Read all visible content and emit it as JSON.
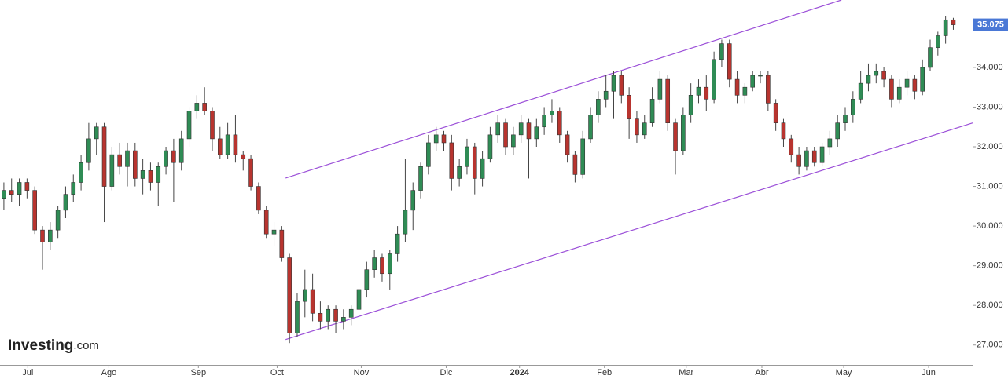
{
  "chart_data": {
    "type": "candlestick",
    "up_color": "#2f8c55",
    "down_color": "#b8342f",
    "line_color": "#9b4fd8",
    "price_label_color": "#4a78d6",
    "grid": false,
    "logo": "Investing",
    "logo_suffix": ".com",
    "xlim": [
      -0.5,
      125.5
    ],
    "ylim": [
      26.5,
      35.7
    ],
    "xticks": [
      {
        "value": 3.1,
        "label": "Jul"
      },
      {
        "value": 13.6,
        "label": "Ago"
      },
      {
        "value": 25.2,
        "label": "Sep"
      },
      {
        "value": 35.4,
        "label": "Oct"
      },
      {
        "value": 46.3,
        "label": "Nov"
      },
      {
        "value": 57.3,
        "label": "Dic"
      },
      {
        "value": 66.8,
        "label": "2024"
      },
      {
        "value": 77.8,
        "label": "Feb"
      },
      {
        "value": 88.4,
        "label": "Mar"
      },
      {
        "value": 98.2,
        "label": "Abr"
      },
      {
        "value": 108.8,
        "label": "May"
      },
      {
        "value": 119.8,
        "label": "Jun"
      }
    ],
    "yticks": [
      {
        "value": 27,
        "label": "27.000"
      },
      {
        "value": 28,
        "label": "28.000"
      },
      {
        "value": 29,
        "label": "29.000"
      },
      {
        "value": 30,
        "label": "30.000"
      },
      {
        "value": 31,
        "label": "31.000"
      },
      {
        "value": 32,
        "label": "32.000"
      },
      {
        "value": 33,
        "label": "33.000"
      },
      {
        "value": 34,
        "label": "34.000"
      }
    ],
    "channels": [
      {
        "x": [
          36.5,
          108.5
        ],
        "y": [
          31.21,
          35.7
        ]
      },
      {
        "x": [
          36.5,
          125.5
        ],
        "y": [
          27.14,
          32.6
        ]
      }
    ],
    "ohlc": [
      [
        30.7,
        31.1,
        30.4,
        30.9
      ],
      [
        30.9,
        31.2,
        30.6,
        30.8
      ],
      [
        30.8,
        31.2,
        30.5,
        31.1
      ],
      [
        31.1,
        31.2,
        30.7,
        30.9
      ],
      [
        30.9,
        31.0,
        29.8,
        29.9
      ],
      [
        29.9,
        30.0,
        28.9,
        29.6
      ],
      [
        29.6,
        30.1,
        29.4,
        29.9
      ],
      [
        29.9,
        30.5,
        29.7,
        30.4
      ],
      [
        30.4,
        31.0,
        30.2,
        30.8
      ],
      [
        30.8,
        31.3,
        30.6,
        31.1
      ],
      [
        31.1,
        31.8,
        30.9,
        31.6
      ],
      [
        31.6,
        32.6,
        31.4,
        32.2
      ],
      [
        32.2,
        32.6,
        31.8,
        32.5
      ],
      [
        32.5,
        32.6,
        30.1,
        31.0
      ],
      [
        31.0,
        32.0,
        30.9,
        31.8
      ],
      [
        31.8,
        32.1,
        31.3,
        31.5
      ],
      [
        31.5,
        32.1,
        31.0,
        31.9
      ],
      [
        31.9,
        32.1,
        31.0,
        31.2
      ],
      [
        31.2,
        31.7,
        30.8,
        31.4
      ],
      [
        31.4,
        31.6,
        30.9,
        31.1
      ],
      [
        31.1,
        31.6,
        30.5,
        31.5
      ],
      [
        31.5,
        32.0,
        31.3,
        31.9
      ],
      [
        31.9,
        32.2,
        30.6,
        31.6
      ],
      [
        31.6,
        32.4,
        31.4,
        32.2
      ],
      [
        32.2,
        33.0,
        32.0,
        32.9
      ],
      [
        32.9,
        33.3,
        32.7,
        33.1
      ],
      [
        33.1,
        33.5,
        32.8,
        32.9
      ],
      [
        32.9,
        33.0,
        31.9,
        32.2
      ],
      [
        32.2,
        32.5,
        31.7,
        31.8
      ],
      [
        31.8,
        32.6,
        31.7,
        32.3
      ],
      [
        32.3,
        32.8,
        31.6,
        31.8
      ],
      [
        31.8,
        31.9,
        31.4,
        31.7
      ],
      [
        31.7,
        31.8,
        30.9,
        31.0
      ],
      [
        31.0,
        31.1,
        30.3,
        30.4
      ],
      [
        30.4,
        30.5,
        29.7,
        29.8
      ],
      [
        29.8,
        30.1,
        29.5,
        29.9
      ],
      [
        29.9,
        30.0,
        29.1,
        29.2
      ],
      [
        29.2,
        29.3,
        27.05,
        27.3
      ],
      [
        27.3,
        28.3,
        27.2,
        28.1
      ],
      [
        28.1,
        28.9,
        27.7,
        28.4
      ],
      [
        28.4,
        28.8,
        27.6,
        27.8
      ],
      [
        27.8,
        28.1,
        27.4,
        27.6
      ],
      [
        27.6,
        28.0,
        27.4,
        27.9
      ],
      [
        27.9,
        28.0,
        27.3,
        27.6
      ],
      [
        27.6,
        27.9,
        27.4,
        27.7
      ],
      [
        27.7,
        28.0,
        27.5,
        27.9
      ],
      [
        27.9,
        28.5,
        27.8,
        28.4
      ],
      [
        28.4,
        29.1,
        28.2,
        28.9
      ],
      [
        28.9,
        29.4,
        28.7,
        29.2
      ],
      [
        29.2,
        29.3,
        28.6,
        28.8
      ],
      [
        28.8,
        29.4,
        28.4,
        29.3
      ],
      [
        29.3,
        30.0,
        29.1,
        29.8
      ],
      [
        29.8,
        31.7,
        29.6,
        30.4
      ],
      [
        30.4,
        31.1,
        29.9,
        30.9
      ],
      [
        30.9,
        31.6,
        30.7,
        31.5
      ],
      [
        31.5,
        32.3,
        31.3,
        32.1
      ],
      [
        32.1,
        32.5,
        31.9,
        32.3
      ],
      [
        32.3,
        32.4,
        31.9,
        32.1
      ],
      [
        32.1,
        32.3,
        30.9,
        31.2
      ],
      [
        31.2,
        31.7,
        31.0,
        31.5
      ],
      [
        31.5,
        32.2,
        31.3,
        32.0
      ],
      [
        32.0,
        32.1,
        30.8,
        31.2
      ],
      [
        31.2,
        31.9,
        31.0,
        31.7
      ],
      [
        31.7,
        32.5,
        31.6,
        32.3
      ],
      [
        32.3,
        32.8,
        32.1,
        32.6
      ],
      [
        32.6,
        32.7,
        31.8,
        32.0
      ],
      [
        32.0,
        32.5,
        31.8,
        32.3
      ],
      [
        32.3,
        32.8,
        32.1,
        32.6
      ],
      [
        32.6,
        32.7,
        31.2,
        32.2
      ],
      [
        32.2,
        32.7,
        32.0,
        32.5
      ],
      [
        32.5,
        33.0,
        32.3,
        32.8
      ],
      [
        32.8,
        33.2,
        32.6,
        32.9
      ],
      [
        32.9,
        33.0,
        32.1,
        32.3
      ],
      [
        32.3,
        32.4,
        31.6,
        31.8
      ],
      [
        31.8,
        31.9,
        31.1,
        31.3
      ],
      [
        31.3,
        32.4,
        31.2,
        32.2
      ],
      [
        32.2,
        33.0,
        32.1,
        32.8
      ],
      [
        32.8,
        33.4,
        32.6,
        33.2
      ],
      [
        33.2,
        33.8,
        33.0,
        33.4
      ],
      [
        33.4,
        33.9,
        32.7,
        33.8
      ],
      [
        33.8,
        33.9,
        33.1,
        33.3
      ],
      [
        33.3,
        33.5,
        32.2,
        32.7
      ],
      [
        32.7,
        32.9,
        32.1,
        32.3
      ],
      [
        32.3,
        32.8,
        32.2,
        32.6
      ],
      [
        32.6,
        33.5,
        32.5,
        33.2
      ],
      [
        33.2,
        33.9,
        33.1,
        33.7
      ],
      [
        33.7,
        33.8,
        32.4,
        32.6
      ],
      [
        32.6,
        32.7,
        31.3,
        31.9
      ],
      [
        31.9,
        33.0,
        31.8,
        32.8
      ],
      [
        32.8,
        33.6,
        32.6,
        33.3
      ],
      [
        33.3,
        33.7,
        33.1,
        33.5
      ],
      [
        33.5,
        33.8,
        32.9,
        33.2
      ],
      [
        33.2,
        34.4,
        33.1,
        34.2
      ],
      [
        34.2,
        34.7,
        34.0,
        34.6
      ],
      [
        34.6,
        34.7,
        33.5,
        33.7
      ],
      [
        33.7,
        33.9,
        33.1,
        33.3
      ],
      [
        33.3,
        33.6,
        33.1,
        33.5
      ],
      [
        33.5,
        33.9,
        33.4,
        33.8
      ],
      [
        33.8,
        33.9,
        33.6,
        33.8
      ],
      [
        33.8,
        33.9,
        32.9,
        33.1
      ],
      [
        33.1,
        33.2,
        32.4,
        32.6
      ],
      [
        32.6,
        32.7,
        32.0,
        32.2
      ],
      [
        32.2,
        32.3,
        31.6,
        31.8
      ],
      [
        31.8,
        32.0,
        31.3,
        31.5
      ],
      [
        31.5,
        32.0,
        31.4,
        31.9
      ],
      [
        31.9,
        32.0,
        31.5,
        31.6
      ],
      [
        31.6,
        32.1,
        31.5,
        32.0
      ],
      [
        32.0,
        32.4,
        31.8,
        32.2
      ],
      [
        32.2,
        32.8,
        32.0,
        32.6
      ],
      [
        32.6,
        33.0,
        32.4,
        32.8
      ],
      [
        32.8,
        33.4,
        32.6,
        33.2
      ],
      [
        33.2,
        33.9,
        33.1,
        33.6
      ],
      [
        33.6,
        34.1,
        33.4,
        33.8
      ],
      [
        33.8,
        34.1,
        33.6,
        33.9
      ],
      [
        33.9,
        34.0,
        33.5,
        33.7
      ],
      [
        33.7,
        33.8,
        33.0,
        33.2
      ],
      [
        33.2,
        33.7,
        33.1,
        33.5
      ],
      [
        33.5,
        33.9,
        33.3,
        33.7
      ],
      [
        33.7,
        33.8,
        33.2,
        33.4
      ],
      [
        33.4,
        34.2,
        33.3,
        34.0
      ],
      [
        34.0,
        34.7,
        33.9,
        34.5
      ],
      [
        34.5,
        34.9,
        34.3,
        34.8
      ],
      [
        34.8,
        35.3,
        34.6,
        35.2
      ],
      [
        35.2,
        35.25,
        34.95,
        35.075
      ]
    ]
  }
}
